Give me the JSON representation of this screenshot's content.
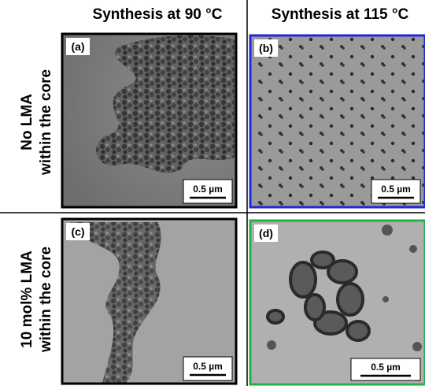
{
  "columns": [
    "Synthesis at 90 °C",
    "Synthesis at 115 °C"
  ],
  "rows": [
    [
      "No LMA",
      "within the core"
    ],
    [
      "10 mol% LMA",
      "within the core"
    ]
  ],
  "panels": [
    {
      "label": "(a)",
      "scale_bar": "0.5 µm"
    },
    {
      "label": "(b)",
      "scale_bar": "0.5 µm"
    },
    {
      "label": "(c)",
      "scale_bar": "0.5 µm"
    },
    {
      "label": "(d)",
      "scale_bar": "0.5 µm"
    }
  ]
}
